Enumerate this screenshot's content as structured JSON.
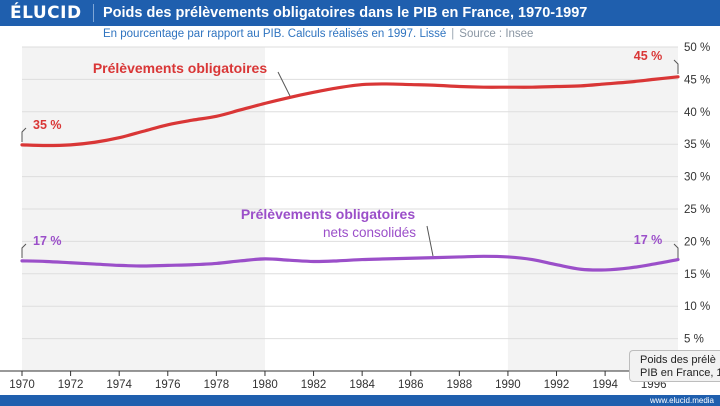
{
  "header": {
    "logo": "ÉLUCID",
    "title": "Poids des prélèvements obligatoires dans le PIB en France, 1970-1997"
  },
  "subtitle": {
    "main": "En pourcentage par rapport au PIB. Calculs réalisés en 1997. Lissé",
    "separator": "|",
    "source": "Source : Insee"
  },
  "tooltip": {
    "line1": "Poids des prélè",
    "line2": "PIB en France, 1"
  },
  "footer": {
    "url": "www.elucid.media"
  },
  "colors": {
    "header": "#1f5fae",
    "series1": "#d93636",
    "series2": "#9b4fc9",
    "shade": "#f3f3f3"
  },
  "chart_data": {
    "type": "line",
    "title": "Poids des prélèvements obligatoires dans le PIB en France, 1970-1997",
    "xlabel": "",
    "ylabel": "",
    "x": [
      1970,
      1971,
      1972,
      1973,
      1974,
      1975,
      1976,
      1977,
      1978,
      1979,
      1980,
      1981,
      1982,
      1983,
      1984,
      1985,
      1986,
      1987,
      1988,
      1989,
      1990,
      1991,
      1992,
      1993,
      1994,
      1995,
      1996,
      1997
    ],
    "xlim": [
      1970,
      1997
    ],
    "ylim": [
      0,
      50
    ],
    "x_ticks": [
      1970,
      1972,
      1974,
      1976,
      1978,
      1980,
      1982,
      1984,
      1986,
      1988,
      1990,
      1992,
      1994,
      1996
    ],
    "y_ticks": [
      "5 %",
      "10 %",
      "15 %",
      "20 %",
      "25 %",
      "30 %",
      "35 %",
      "40 %",
      "45 %",
      "50 %"
    ],
    "y_tick_values": [
      5,
      10,
      15,
      20,
      25,
      30,
      35,
      40,
      45,
      50
    ],
    "shaded_ranges": [
      [
        1970,
        1980
      ],
      [
        1990,
        1997
      ]
    ],
    "series": [
      {
        "name": "Prélèvements obligatoires",
        "label_lines": [
          "Prélèvements obligatoires"
        ],
        "color": "#d93636",
        "values": [
          34.9,
          34.8,
          34.9,
          35.3,
          36.0,
          37.0,
          38.0,
          38.7,
          39.3,
          40.3,
          41.3,
          42.2,
          43.0,
          43.7,
          44.2,
          44.3,
          44.2,
          44.1,
          43.9,
          43.8,
          43.8,
          43.8,
          43.9,
          44.0,
          44.3,
          44.6,
          45.0,
          45.4
        ],
        "start_label": "35 %",
        "end_label": "45 %"
      },
      {
        "name": "Prélèvements obligatoires nets consolidés",
        "label_lines": [
          "Prélèvements obligatoires",
          "nets consolidés"
        ],
        "color": "#9b4fc9",
        "values": [
          17.0,
          16.9,
          16.7,
          16.5,
          16.3,
          16.2,
          16.3,
          16.4,
          16.6,
          17.0,
          17.3,
          17.1,
          16.9,
          17.0,
          17.2,
          17.3,
          17.4,
          17.5,
          17.6,
          17.7,
          17.6,
          17.2,
          16.4,
          15.7,
          15.6,
          15.9,
          16.5,
          17.2
        ],
        "start_label": "17 %",
        "end_label": "17 %"
      }
    ]
  }
}
